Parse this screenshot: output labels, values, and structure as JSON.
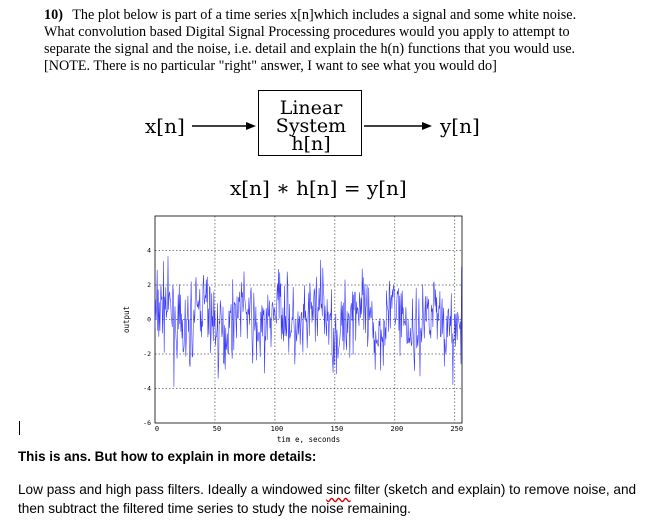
{
  "question": {
    "number": "10)",
    "text": "The plot below is part of a time series x[n]which includes a signal and some white noise. What convolution based Digital Signal Processing procedures would you apply to attempt to separate the signal and the noise, i.e. detail and explain the h(n) functions that you would use. [NOTE. There is no particular \"right\" answer, I want to see what you would do]"
  },
  "diagram": {
    "input_label": "x[n]",
    "system_line1": "Linear",
    "system_line2": "System",
    "system_line3": "h[n]",
    "output_label": "y[n]",
    "equation": "x[n] ∗ h[n] = y[n]"
  },
  "chart_data": {
    "type": "line",
    "ylabel": "output",
    "xlabel": "tim e, seconds",
    "xlim": [
      0,
      256
    ],
    "ylim": [
      -6,
      6
    ],
    "xticks": [
      "0",
      "50",
      "100",
      "150",
      "200",
      "250"
    ],
    "yticks": [
      "4",
      "2",
      "0",
      "-2",
      "-4",
      "-6"
    ],
    "grid": true,
    "series": [
      {
        "color": "#3a3aff"
      }
    ]
  },
  "answer": {
    "label": "This is ans. But how to explain in more details:",
    "body_pre": "Low pass and high pass filters. Ideally a windowed ",
    "body_sinc": "sinc",
    "body_post": " filter (sketch and explain) to remove noise, and then subtract the filtered time series to study the noise remaining."
  }
}
